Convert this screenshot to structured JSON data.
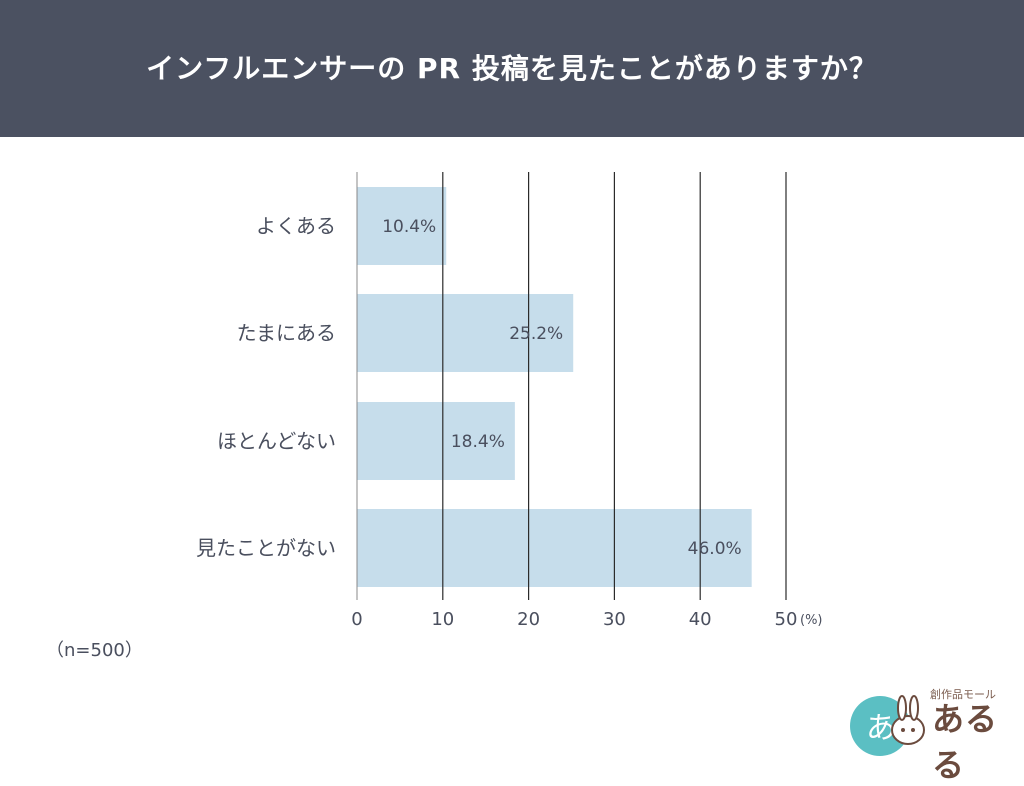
{
  "header": {
    "title": "インフルエンサーの PR 投稿を見たことがありますか？"
  },
  "sample_note": "（n=500）",
  "logo": {
    "text": "あるる",
    "sub": "創作品モール",
    "circle_text": "あ"
  },
  "colors": {
    "header_bg": "#4b5161",
    "bar": "#c6ddeb",
    "text": "#4a4f5e",
    "grid": "#2b2b2b"
  },
  "chart_data": {
    "type": "bar",
    "orientation": "horizontal",
    "categories": [
      "よくある",
      "たまにある",
      "ほとんどない",
      "見たことがない"
    ],
    "values": [
      10.4,
      25.2,
      18.4,
      46.0
    ],
    "value_labels": [
      "10.4%",
      "25.2%",
      "18.4%",
      "46.0%"
    ],
    "x_ticks": [
      "0",
      "10",
      "20",
      "30",
      "40",
      "50"
    ],
    "x_unit": "(%)",
    "xlim": [
      0,
      50
    ],
    "grid": true
  }
}
